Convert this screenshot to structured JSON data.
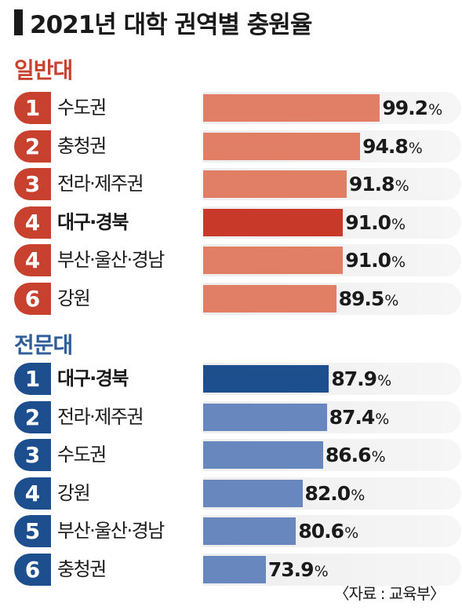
{
  "title": "2021년 대학 권역별 충원율",
  "source": "〈자료 : 교육부〉",
  "unit": "%",
  "chart_data": [
    {
      "type": "bar",
      "title": "일반대",
      "colors": {
        "bar": "#e07e66",
        "highlight_bar": "#c8392a",
        "rank_badge": "#c7412e",
        "label": "#c7412e"
      },
      "xlim": [
        60,
        100
      ],
      "rows": [
        {
          "rank": "1",
          "region": "수도권",
          "value": 99.2,
          "value_label": "99.2",
          "highlight": false
        },
        {
          "rank": "2",
          "region": "충청권",
          "value": 94.8,
          "value_label": "94.8",
          "highlight": false
        },
        {
          "rank": "3",
          "region": "전라·제주권",
          "value": 91.8,
          "value_label": "91.8",
          "highlight": false
        },
        {
          "rank": "4",
          "region": "대구·경북",
          "value": 91.0,
          "value_label": "91.0",
          "highlight": true
        },
        {
          "rank": "4",
          "region": "부산·울산·경남",
          "value": 91.0,
          "value_label": "91.0",
          "highlight": false
        },
        {
          "rank": "6",
          "region": "강원",
          "value": 89.5,
          "value_label": "89.5",
          "highlight": false
        }
      ]
    },
    {
      "type": "bar",
      "title": "전문대",
      "colors": {
        "bar": "#6887bf",
        "highlight_bar": "#1d4f8f",
        "rank_badge": "#1d4f8f",
        "label": "#2e5d9a"
      },
      "xlim": [
        60,
        100
      ],
      "rows": [
        {
          "rank": "1",
          "region": "대구·경북",
          "value": 87.9,
          "value_label": "87.9",
          "highlight": true
        },
        {
          "rank": "2",
          "region": "전라·제주권",
          "value": 87.4,
          "value_label": "87.4",
          "highlight": false
        },
        {
          "rank": "3",
          "region": "수도권",
          "value": 86.6,
          "value_label": "86.6",
          "highlight": false
        },
        {
          "rank": "4",
          "region": "강원",
          "value": 82.0,
          "value_label": "82.0",
          "highlight": false
        },
        {
          "rank": "5",
          "region": "부산·울산·경남",
          "value": 80.6,
          "value_label": "80.6",
          "highlight": false
        },
        {
          "rank": "6",
          "region": "충청권",
          "value": 73.9,
          "value_label": "73.9",
          "highlight": false
        }
      ]
    }
  ]
}
